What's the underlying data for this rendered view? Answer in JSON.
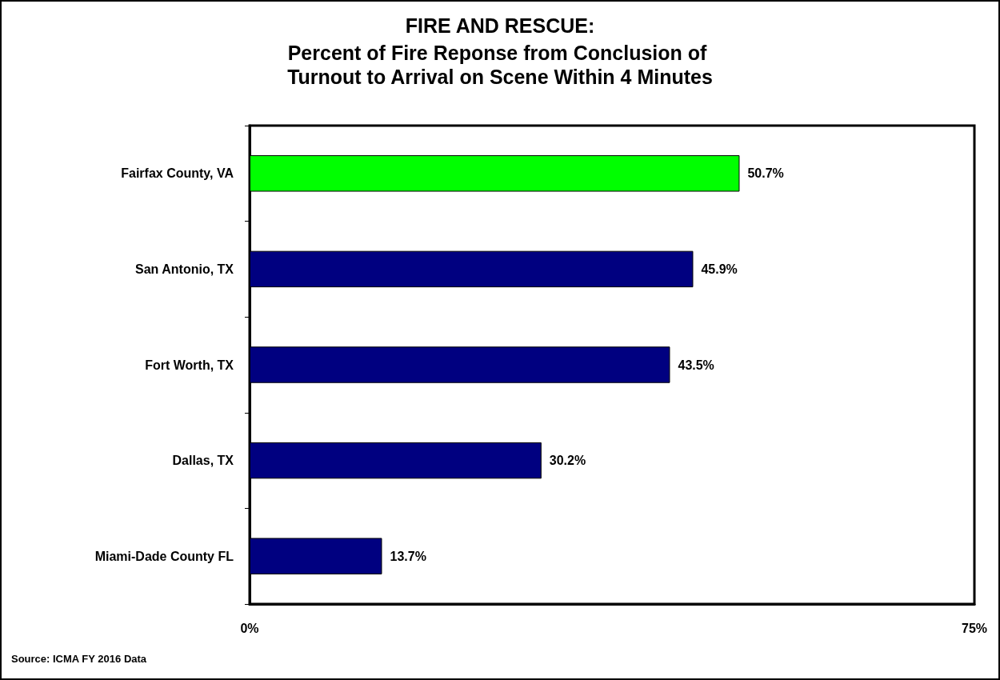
{
  "chart_data": {
    "type": "bar",
    "orientation": "horizontal",
    "title": "FIRE AND RESCUE:",
    "subtitle": "Percent of Fire Reponse from Conclusion of Turnout to Arrival on Scene Within 4 Minutes",
    "categories": [
      "Fairfax County, VA",
      "San Antonio, TX",
      "Fort Worth, TX",
      "Dallas, TX",
      "Miami-Dade County FL"
    ],
    "values": [
      50.7,
      45.9,
      43.5,
      30.2,
      13.7
    ],
    "colors": [
      "#00ff00",
      "#000080",
      "#000080",
      "#000080",
      "#000080"
    ],
    "value_labels": [
      "50.7%",
      "45.9%",
      "43.5%",
      "30.2%",
      "13.7%"
    ],
    "xlim": [
      0,
      75
    ],
    "xticks": [
      {
        "value": 0,
        "label": "0%"
      },
      {
        "value": 75,
        "label": "75%"
      }
    ],
    "grid": false,
    "annotations": [
      "Source: ICMA FY 2016 Data"
    ]
  }
}
